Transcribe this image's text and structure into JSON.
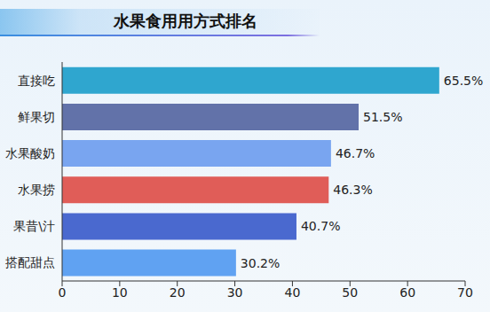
{
  "chart_data": {
    "type": "bar",
    "title": "水果食用用方式排名",
    "orientation": "horizontal",
    "categories": [
      "直接吃",
      "鲜果切",
      "水果酸奶",
      "水果捞",
      "果昔\\汁",
      "搭配甜点"
    ],
    "values": [
      65.5,
      51.5,
      46.7,
      46.3,
      40.7,
      30.2
    ],
    "value_labels": [
      "65.5%",
      "51.5%",
      "46.7%",
      "46.3%",
      "40.7%",
      "30.2%"
    ],
    "colors": [
      "#2fa6cf",
      "#6272a9",
      "#79a5f0",
      "#e05d58",
      "#4a69cf",
      "#60a2f2"
    ],
    "xlim": [
      0,
      70
    ],
    "xticks": [
      0,
      10,
      20,
      30,
      40,
      50,
      60,
      70
    ],
    "grid": false,
    "data_labels": true
  }
}
